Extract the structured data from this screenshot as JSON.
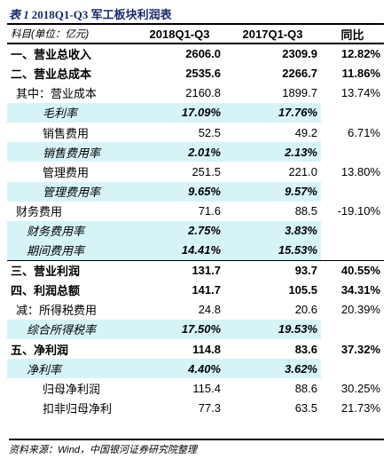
{
  "title": {
    "prefix": "表 1",
    "text": "2018Q1-Q3 军工板块利润表"
  },
  "table": {
    "headers": [
      "科目(单位：亿元)",
      "2018Q1-Q3",
      "2017Q1-Q3",
      "同比"
    ],
    "rows": [
      {
        "label": "一、营业总收入",
        "v2018": "2606.0",
        "v2017": "2309.9",
        "yoy": "12.82%"
      },
      {
        "label": "二、营业总成本",
        "v2018": "2535.6",
        "v2017": "2266.7",
        "yoy": "11.86%"
      },
      {
        "label": "其中：营业成本",
        "v2018": "2160.8",
        "v2017": "1899.7",
        "yoy": "13.74%"
      },
      {
        "label": "毛利率",
        "v2018": "17.09%",
        "v2017": "17.76%",
        "yoy": ""
      },
      {
        "label": "销售费用",
        "v2018": "52.5",
        "v2017": "49.2",
        "yoy": "6.71%"
      },
      {
        "label": "销售费用率",
        "v2018": "2.01%",
        "v2017": "2.13%",
        "yoy": ""
      },
      {
        "label": "管理费用",
        "v2018": "251.5",
        "v2017": "221.0",
        "yoy": "13.80%"
      },
      {
        "label": "管理费用率",
        "v2018": "9.65%",
        "v2017": "9.57%",
        "yoy": ""
      },
      {
        "label": "财务费用",
        "v2018": "71.6",
        "v2017": "88.5",
        "yoy": "-19.10%"
      },
      {
        "label": "财务费用率",
        "v2018": "2.75%",
        "v2017": "3.83%",
        "yoy": ""
      },
      {
        "label": "期间费用率",
        "v2018": "14.41%",
        "v2017": "15.53%",
        "yoy": ""
      },
      {
        "label": "三、营业利润",
        "v2018": "131.7",
        "v2017": "93.7",
        "yoy": "40.55%"
      },
      {
        "label": "四、利润总额",
        "v2018": "141.7",
        "v2017": "105.5",
        "yoy": "34.31%"
      },
      {
        "label": "减：所得税费用",
        "v2018": "24.8",
        "v2017": "20.6",
        "yoy": "20.39%"
      },
      {
        "label": "综合所得税率",
        "v2018": "17.50%",
        "v2017": "19.53%",
        "yoy": ""
      },
      {
        "label": "五、净利润",
        "v2018": "114.8",
        "v2017": "83.6",
        "yoy": "37.32%"
      },
      {
        "label": "净利率",
        "v2018": "4.40%",
        "v2017": "3.62%",
        "yoy": ""
      },
      {
        "label": "归母净利润",
        "v2018": "115.4",
        "v2017": "88.6",
        "yoy": "30.25%"
      },
      {
        "label": "扣非归母净利",
        "v2018": "77.3",
        "v2017": "63.5",
        "yoy": "21.73%"
      }
    ]
  },
  "source": "资料来源：Wind，中国银河证券研究院整理",
  "colors": {
    "title": "#1a2a6c",
    "ratio_highlight": "#d6f4f6"
  }
}
